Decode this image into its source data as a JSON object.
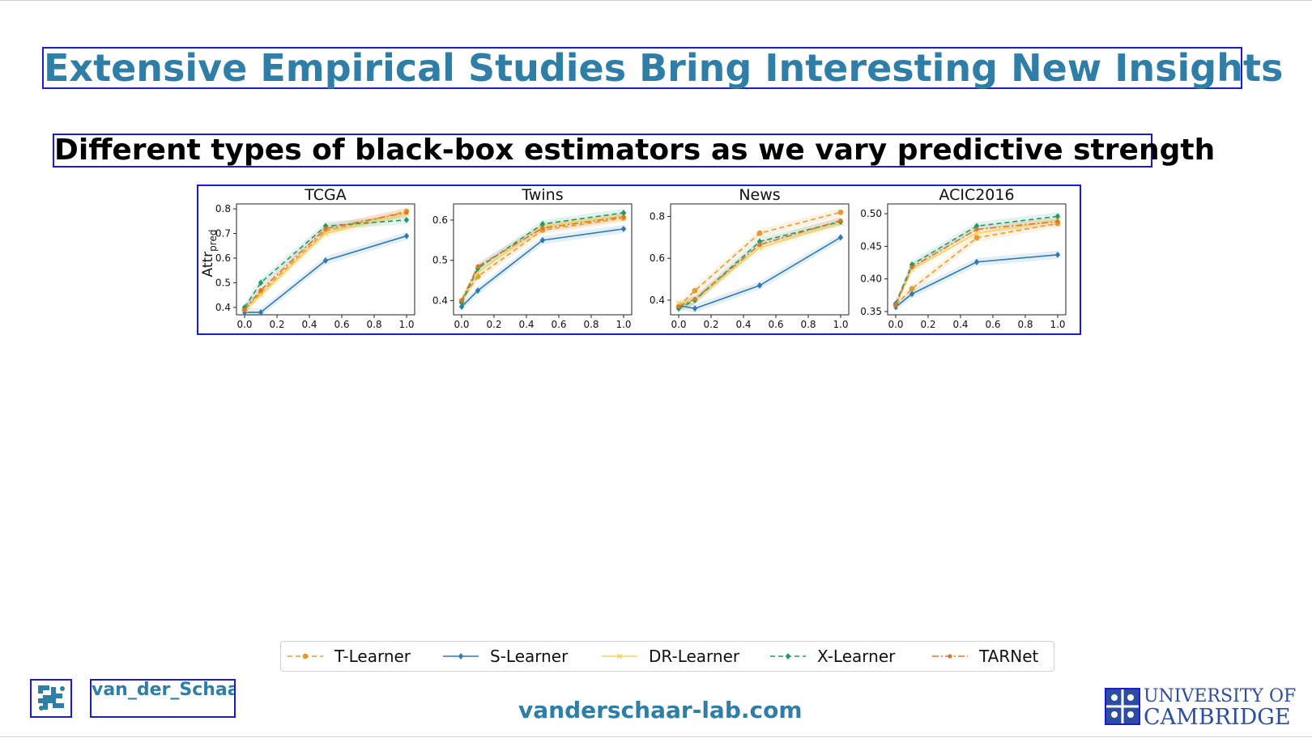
{
  "slide": {
    "title": "Extensive Empirical Studies Bring Interesting New Insights",
    "subtitle": "Different types of black-box estimators as we vary predictive strength",
    "footer_lab_name": "van_der_Schaar \\ LAB",
    "footer_url": "vanderschaar-lab.com",
    "university_line1": "UNIVERSITY OF",
    "university_line2": "CAMBRIDGE",
    "accent_color": "#2f7ea7"
  },
  "chart_data": {
    "type": "line",
    "ylabel": "Attr",
    "ylabel_sub": "pred",
    "xlabel": "",
    "x": [
      0.0,
      0.1,
      0.5,
      1.0
    ],
    "xticks": [
      "0.0",
      "0.2",
      "0.4",
      "0.6",
      "0.8",
      "1.0"
    ],
    "legend_position": "bottom",
    "legend_entries": [
      "T-Learner",
      "S-Learner",
      "DR-Learner",
      "X-Learner",
      "TARNet"
    ],
    "series_styles": [
      {
        "name": "T-Learner",
        "color": "#e69a2e",
        "dash": "6,4",
        "marker": "circle"
      },
      {
        "name": "S-Learner",
        "color": "#2f7ab5",
        "dash": "",
        "marker": "diamond"
      },
      {
        "name": "DR-Learner",
        "color": "#f2d45c",
        "dash": "",
        "marker": "x"
      },
      {
        "name": "X-Learner",
        "color": "#1f9a6b",
        "dash": "6,4",
        "marker": "diamond"
      },
      {
        "name": "TARNet",
        "color": "#d9772b",
        "dash": "8,3,2,3",
        "marker": "dot"
      }
    ],
    "panels": [
      {
        "title": "TCGA",
        "ylim": [
          0.37,
          0.82
        ],
        "yticks": [
          "0.4",
          "0.5",
          "0.6",
          "0.7",
          "0.8"
        ],
        "series": [
          {
            "name": "T-Learner",
            "values": [
              0.39,
              0.46,
              0.71,
              0.79
            ]
          },
          {
            "name": "S-Learner",
            "values": [
              0.38,
              0.38,
              0.59,
              0.69
            ]
          },
          {
            "name": "DR-Learner",
            "values": [
              0.39,
              0.45,
              0.7,
              0.78
            ]
          },
          {
            "name": "X-Learner",
            "values": [
              0.4,
              0.5,
              0.73,
              0.755
            ]
          },
          {
            "name": "TARNet",
            "values": [
              0.39,
              0.47,
              0.72,
              0.785
            ]
          }
        ]
      },
      {
        "title": "Twins",
        "ylim": [
          0.365,
          0.64
        ],
        "yticks": [
          "0.4",
          "0.5",
          "0.6"
        ],
        "series": [
          {
            "name": "T-Learner",
            "values": [
              0.4,
              0.46,
              0.575,
              0.605
            ]
          },
          {
            "name": "S-Learner",
            "values": [
              0.385,
              0.425,
              0.55,
              0.578
            ]
          },
          {
            "name": "DR-Learner",
            "values": [
              0.4,
              0.47,
              0.585,
              0.61
            ]
          },
          {
            "name": "X-Learner",
            "values": [
              0.395,
              0.48,
              0.59,
              0.618
            ]
          },
          {
            "name": "TARNet",
            "values": [
              0.4,
              0.485,
              0.58,
              0.608
            ]
          }
        ]
      },
      {
        "title": "News",
        "ylim": [
          0.33,
          0.86
        ],
        "yticks": [
          "0.4",
          "0.6",
          "0.8"
        ],
        "series": [
          {
            "name": "T-Learner",
            "values": [
              0.37,
              0.445,
              0.72,
              0.82
            ]
          },
          {
            "name": "S-Learner",
            "values": [
              0.375,
              0.36,
              0.47,
              0.7
            ]
          },
          {
            "name": "DR-Learner",
            "values": [
              0.385,
              0.4,
              0.65,
              0.77
            ]
          },
          {
            "name": "X-Learner",
            "values": [
              0.36,
              0.4,
              0.68,
              0.775
            ]
          },
          {
            "name": "TARNet",
            "values": [
              0.37,
              0.405,
              0.665,
              0.78
            ]
          }
        ]
      },
      {
        "title": "ACIC2016",
        "ylim": [
          0.345,
          0.515
        ],
        "yticks": [
          "0.35",
          "0.40",
          "0.45",
          "0.50"
        ],
        "series": [
          {
            "name": "T-Learner",
            "values": [
              0.36,
              0.385,
              0.463,
              0.485
            ]
          },
          {
            "name": "S-Learner",
            "values": [
              0.357,
              0.377,
              0.426,
              0.437
            ]
          },
          {
            "name": "DR-Learner",
            "values": [
              0.36,
              0.415,
              0.47,
              0.49
            ]
          },
          {
            "name": "X-Learner",
            "values": [
              0.362,
              0.422,
              0.481,
              0.496
            ]
          },
          {
            "name": "TARNet",
            "values": [
              0.36,
              0.418,
              0.476,
              0.488
            ]
          }
        ]
      }
    ]
  }
}
